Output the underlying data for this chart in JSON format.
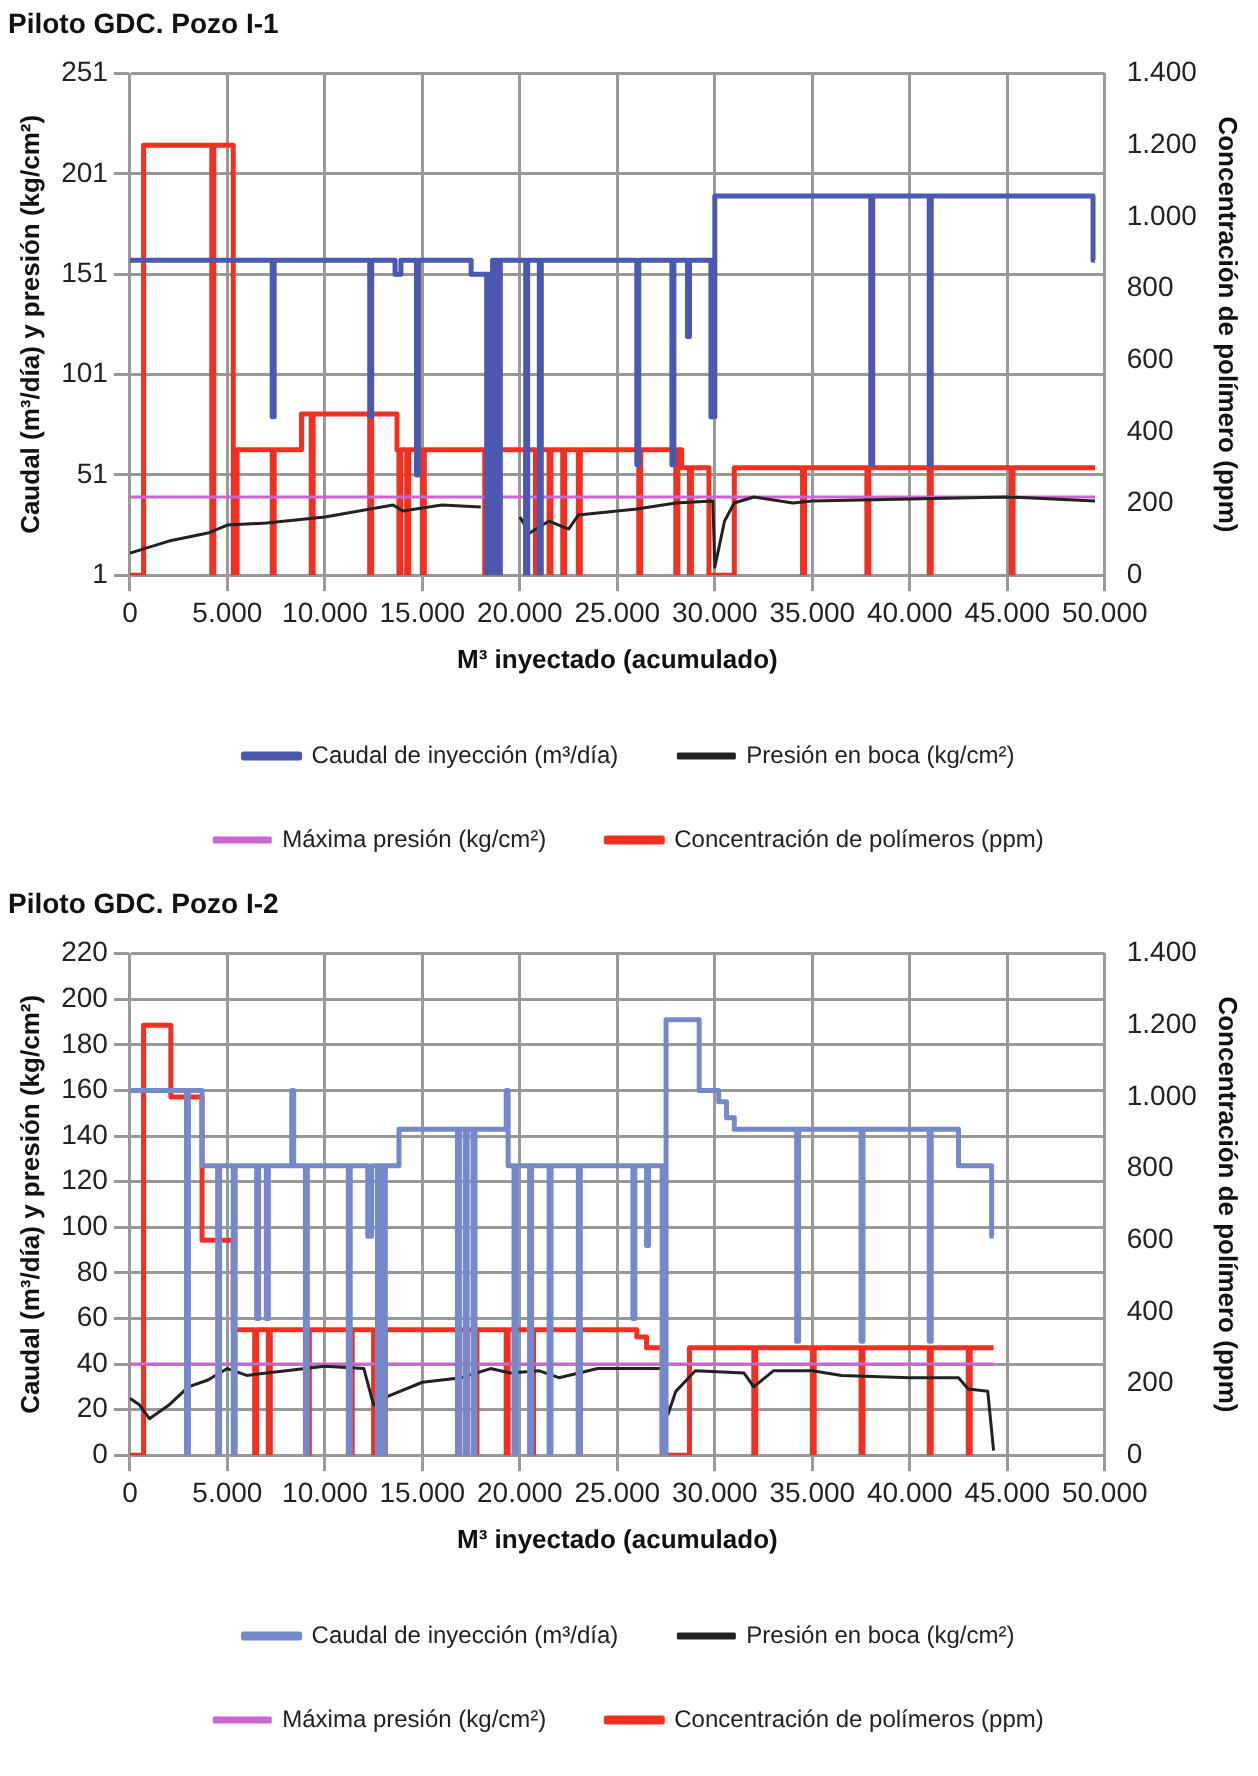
{
  "chart_data": [
    {
      "type": "line",
      "title": "Piloto GDC. Pozo I-1",
      "xlabel": "M³ inyectado (acumulado)",
      "ylabel": "Caudal (m³/día) y presión (kg/cm²)",
      "y2label": "Concentración de polímero (ppm)",
      "xlim": [
        0,
        50000
      ],
      "xticks": [
        0,
        {
          "value": 5000,
          "label": "5.000"
        },
        {
          "value": 10000,
          "label": "10.000"
        },
        {
          "value": 15000,
          "label": "15.000"
        },
        {
          "value": 20000,
          "label": "20.000"
        },
        {
          "value": 25000,
          "label": "25.000"
        },
        {
          "value": 30000,
          "label": "30.000"
        },
        {
          "value": 35000,
          "label": "35.000"
        },
        {
          "value": 40000,
          "label": "40.000"
        },
        {
          "value": 45000,
          "label": "45.000"
        },
        {
          "value": 50000,
          "label": "50.000"
        }
      ],
      "ylim": [
        1,
        251
      ],
      "yticks": [
        1,
        51,
        101,
        151,
        201,
        251
      ],
      "y2lim": [
        0,
        1400
      ],
      "y2ticks": [
        0,
        200,
        400,
        600,
        800,
        {
          "value": 1000,
          "label": "1.000"
        },
        {
          "value": 1200,
          "label": "1.200"
        },
        {
          "value": 1400,
          "label": "1.400"
        }
      ],
      "grid": true,
      "legend": "bottom",
      "series": [
        {
          "name": "Caudal de inyección (m³/día)",
          "type": "step",
          "color": "#4a58b0",
          "x": [
            0,
            7300,
            7400,
            12300,
            12400,
            13600,
            13900,
            14700,
            14800,
            17500,
            18300,
            18400,
            18500,
            18600,
            18700,
            18800,
            18900,
            19000,
            20300,
            20400,
            21000,
            21100,
            26000,
            26100,
            27800,
            27900,
            28600,
            28700,
            29800,
            30000,
            38000,
            38100,
            41000,
            41100,
            49400,
            49500
          ],
          "values": [
            158,
            80,
            158,
            80,
            158,
            151,
            158,
            51,
            158,
            151,
            1,
            151,
            1,
            158,
            1,
            158,
            1,
            158,
            1,
            158,
            1,
            158,
            56,
            158,
            56,
            158,
            120,
            158,
            80,
            190,
            56,
            190,
            56,
            190,
            158,
            158
          ]
        },
        {
          "name": "Presión en boca (kg/cm²)",
          "type": "line",
          "color": "#222222",
          "x": [
            0,
            2000,
            4000,
            5000,
            7000,
            10000,
            13500,
            14000,
            16000,
            18000,
            18500,
            20000,
            20500,
            21500,
            22500,
            23000,
            26000,
            28000,
            29900,
            30000,
            30500,
            31000,
            32000,
            34000,
            35000,
            40000,
            45000,
            49500
          ],
          "values": [
            12,
            18,
            22,
            26,
            27,
            30,
            36,
            33,
            36,
            35,
            null,
            30,
            22,
            28,
            24,
            31,
            34,
            37,
            38,
            5,
            28,
            37,
            40,
            37,
            38,
            39,
            40,
            38
          ]
        },
        {
          "name": "Máxima presión (kg/cm²)",
          "type": "line",
          "color": "#cc66cc",
          "x": [
            0,
            49500
          ],
          "values": [
            40,
            40
          ]
        },
        {
          "name": "Concentración de polímeros (ppm)",
          "type": "step",
          "axis": "y2",
          "color": "#f03020",
          "x": [
            0,
            700,
            4200,
            4300,
            5300,
            5500,
            7300,
            7400,
            8800,
            9300,
            9400,
            12300,
            12400,
            13700,
            13800,
            13900,
            14200,
            14300,
            15000,
            15100,
            18200,
            18300,
            18400,
            18500,
            18600,
            18700,
            18800,
            18900,
            20300,
            20400,
            20800,
            20900,
            21500,
            21600,
            22200,
            22300,
            23000,
            23100,
            26100,
            26200,
            28000,
            28100,
            28300,
            28700,
            28800,
            29700,
            31000,
            34500,
            34600,
            37800,
            37900,
            41000,
            41100,
            45200,
            45300,
            49500
          ],
          "values": [
            0,
            1200,
            0,
            1200,
            0,
            350,
            0,
            350,
            450,
            0,
            450,
            0,
            450,
            350,
            0,
            350,
            0,
            350,
            0,
            350,
            0,
            350,
            0,
            350,
            0,
            null,
            0,
            350,
            0,
            350,
            0,
            350,
            0,
            350,
            0,
            350,
            0,
            350,
            0,
            350,
            0,
            350,
            300,
            0,
            300,
            0,
            300,
            0,
            300,
            0,
            300,
            0,
            300,
            0,
            300,
            300
          ]
        }
      ]
    },
    {
      "type": "line",
      "title": "Piloto GDC. Pozo I-2",
      "xlabel": "M³ inyectado (acumulado)",
      "ylabel": "Caudal (m³/día) y presión (kg/cm²)",
      "y2label": "Concentración de polímero (ppm)",
      "xlim": [
        0,
        50000
      ],
      "xticks": [
        0,
        {
          "value": 5000,
          "label": "5.000"
        },
        {
          "value": 10000,
          "label": "10.000"
        },
        {
          "value": 15000,
          "label": "15.000"
        },
        {
          "value": 20000,
          "label": "20.000"
        },
        {
          "value": 25000,
          "label": "25.000"
        },
        {
          "value": 30000,
          "label": "30.000"
        },
        {
          "value": 35000,
          "label": "35.000"
        },
        {
          "value": 40000,
          "label": "40.000"
        },
        {
          "value": 45000,
          "label": "45.000"
        },
        {
          "value": 50000,
          "label": "50.000"
        }
      ],
      "ylim": [
        0,
        220
      ],
      "yticks": [
        0,
        20,
        40,
        60,
        80,
        100,
        120,
        140,
        160,
        180,
        200,
        220
      ],
      "y2lim": [
        0,
        1400
      ],
      "y2ticks": [
        0,
        200,
        400,
        600,
        800,
        {
          "value": 1000,
          "label": "1.000"
        },
        {
          "value": 1200,
          "label": "1.200"
        },
        {
          "value": 1400,
          "label": "1.400"
        }
      ],
      "grid": true,
      "legend": "bottom",
      "series": [
        {
          "name": "Caudal de inyección (m³/día)",
          "type": "step",
          "color": "#7688cc",
          "x": [
            0,
            2900,
            3000,
            3700,
            4500,
            4600,
            5300,
            5400,
            6500,
            6600,
            7000,
            7100,
            8300,
            8400,
            9000,
            9100,
            11200,
            11300,
            12200,
            12400,
            12700,
            12800,
            13000,
            13100,
            13800,
            16800,
            16900,
            17200,
            17300,
            17600,
            17700,
            19300,
            19400,
            19700,
            19800,
            20500,
            20600,
            21500,
            21600,
            23000,
            23100,
            25800,
            25900,
            26500,
            26600,
            27300,
            27500,
            29200,
            30200,
            30600,
            31000,
            34200,
            34300,
            37500,
            37600,
            41000,
            41100,
            42500,
            44200,
            44300
          ],
          "values": [
            160,
            0,
            160,
            127,
            0,
            127,
            0,
            127,
            60,
            127,
            60,
            127,
            160,
            127,
            0,
            127,
            0,
            127,
            96,
            127,
            0,
            127,
            0,
            127,
            143,
            0,
            143,
            0,
            143,
            0,
            143,
            160,
            127,
            0,
            127,
            0,
            127,
            0,
            127,
            0,
            127,
            60,
            127,
            92,
            127,
            0,
            191,
            160,
            155,
            148,
            143,
            50,
            143,
            50,
            143,
            50,
            143,
            127,
            96,
            96
          ]
        },
        {
          "name": "Presión en boca (kg/cm²)",
          "type": "line",
          "color": "#222222",
          "x": [
            0,
            500,
            1000,
            2000,
            3000,
            4000,
            5000,
            6000,
            8000,
            10000,
            12000,
            12500,
            13000,
            15000,
            17000,
            18500,
            19500,
            21000,
            22000,
            24000,
            27300,
            27600,
            28000,
            29000,
            31500,
            32000,
            33000,
            35000,
            36500,
            40000,
            42500,
            43000,
            44000,
            44300
          ],
          "values": [
            25,
            22,
            16,
            22,
            30,
            33,
            38,
            35,
            37,
            39,
            38,
            22,
            25,
            32,
            34,
            38,
            36,
            37,
            34,
            38,
            38,
            18,
            28,
            37,
            36,
            30,
            37,
            37,
            35,
            34,
            34,
            29,
            28,
            2
          ]
        },
        {
          "name": "Máxima presión (kg/cm²)",
          "type": "line",
          "color": "#cc66cc",
          "x": [
            0,
            44300
          ],
          "values": [
            40,
            40
          ]
        },
        {
          "name": "Concentración de polímeros (ppm)",
          "type": "step",
          "axis": "y2",
          "color": "#f03020",
          "x": [
            0,
            700,
            2100,
            3700,
            5300,
            6400,
            6500,
            7100,
            7200,
            9100,
            9200,
            11300,
            11400,
            12500,
            12600,
            13000,
            13100,
            16800,
            16900,
            17200,
            17300,
            17700,
            17800,
            19300,
            19400,
            20600,
            20700,
            23000,
            23100,
            26000,
            26500,
            27300,
            28700,
            32000,
            32100,
            35000,
            35100,
            37500,
            37600,
            41000,
            41100,
            43000,
            43100,
            44300
          ],
          "values": [
            0,
            1200,
            1000,
            600,
            350,
            0,
            350,
            0,
            350,
            0,
            350,
            0,
            350,
            0,
            350,
            0,
            350,
            0,
            350,
            0,
            350,
            0,
            350,
            0,
            350,
            0,
            350,
            0,
            350,
            330,
            300,
            0,
            300,
            0,
            300,
            0,
            300,
            0,
            300,
            0,
            300,
            0,
            300,
            300
          ]
        }
      ]
    }
  ]
}
